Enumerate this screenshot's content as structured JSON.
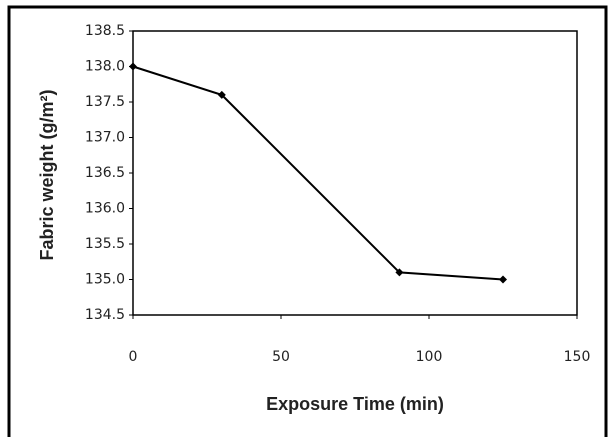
{
  "chart_data": {
    "type": "line",
    "x_label": "Exposure Time (min)",
    "y_label": "Fabric weight (g/m²)",
    "x": [
      0,
      30,
      90,
      125
    ],
    "series": [
      {
        "name": "Fabric weight",
        "color": "#000000",
        "values": [
          138.0,
          137.6,
          135.1,
          135.0
        ]
      }
    ],
    "xlim": [
      0,
      150
    ],
    "xticks": [
      0,
      50,
      100,
      150
    ],
    "ylim": [
      134.5,
      138.5
    ],
    "yticks": [
      134.5,
      {
        "value": 135,
        "label": "135.0"
      },
      135.5,
      {
        "value": 136,
        "label": "136.0"
      },
      136.5,
      {
        "value": 137,
        "label": "137.0"
      },
      137.5,
      {
        "value": 138,
        "label": "138.0"
      },
      138.5
    ],
    "grid": false
  }
}
